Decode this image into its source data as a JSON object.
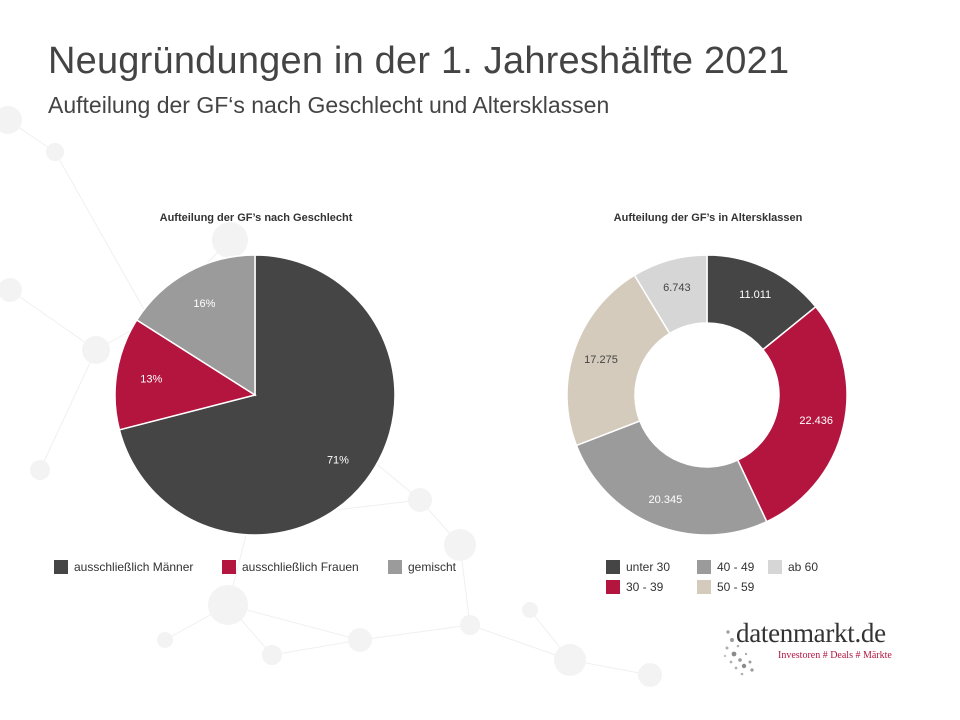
{
  "header": {
    "title": "Neugründungen in der 1. Jahreshälfte 2021",
    "subtitle": "Aufteilung der GF‘s nach Geschlecht und Altersklassen"
  },
  "chart_data": [
    {
      "type": "pie",
      "title": "Aufteilung  der GF’s nach Geschlecht",
      "legend_position": "bottom",
      "series": [
        {
          "name": "ausschließlich Männer",
          "value": 71,
          "label": "71%",
          "color": "#454545"
        },
        {
          "name": "ausschließlich Frauen",
          "value": 13,
          "label": "13%",
          "color": "#b3153f"
        },
        {
          "name": "gemischt",
          "value": 16,
          "label": "16%",
          "color": "#9b9b9b"
        }
      ]
    },
    {
      "type": "pie",
      "subtype": "donut",
      "title": "Aufteilung  der GF’s in Altersklassen",
      "legend_position": "bottom",
      "series": [
        {
          "name": "unter 30",
          "value": 11011,
          "label": "11.011",
          "color": "#454545"
        },
        {
          "name": "30 - 39",
          "value": 22436,
          "label": "22.436",
          "color": "#b3153f"
        },
        {
          "name": "40 - 49",
          "value": 20345,
          "label": "20.345",
          "color": "#9b9b9b"
        },
        {
          "name": "50 - 59",
          "value": 17275,
          "label": "17.275",
          "color": "#d4cbbd"
        },
        {
          "name": "ab 60",
          "value": 6743,
          "label": "6.743",
          "color": "#d6d6d6"
        }
      ]
    }
  ],
  "logo": {
    "name": "datenmarkt.de",
    "tagline": "Investoren # Deals # Märkte"
  }
}
